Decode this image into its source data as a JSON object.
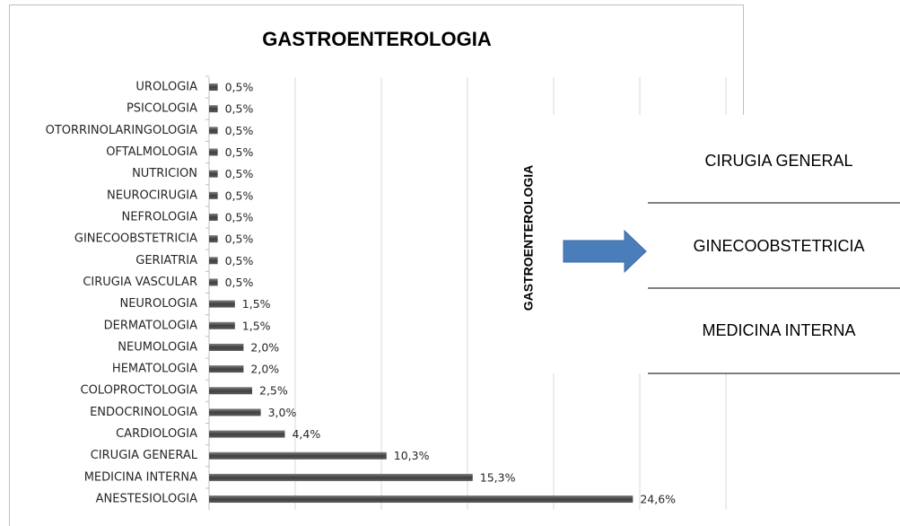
{
  "chart_data": {
    "type": "barh",
    "title": "GASTROENTEROLOGIA",
    "categories": [
      "UROLOGIA",
      "PSICOLOGIA",
      "OTORRINOLARINGOLOGIA",
      "OFTALMOLOGIA",
      "NUTRICION",
      "NEUROCIRUGIA",
      "NEFROLOGIA",
      "GINECOOBSTETRICIA",
      "GERIATRIA",
      "CIRUGIA VASCULAR",
      "NEUROLOGIA",
      "DERMATOLOGIA",
      "NEUMOLOGIA",
      "HEMATOLOGIA",
      "COLOPROCTOLOGIA",
      "ENDOCRINOLOGIA",
      "CARDIOLOGIA",
      "CIRUGIA GENERAL",
      "MEDICINA INTERNA",
      "ANESTESIOLOGIA"
    ],
    "values": [
      0.5,
      0.5,
      0.5,
      0.5,
      0.5,
      0.5,
      0.5,
      0.5,
      0.5,
      0.5,
      1.5,
      1.5,
      2.0,
      2.0,
      2.5,
      3.0,
      4.4,
      10.3,
      15.3,
      24.6
    ],
    "value_labels": [
      "0,5%",
      "0,5%",
      "0,5%",
      "0,5%",
      "0,5%",
      "0,5%",
      "0,5%",
      "0,5%",
      "0,5%",
      "0,5%",
      "1,5%",
      "1,5%",
      "2,0%",
      "2,0%",
      "2,5%",
      "3,0%",
      "4,4%",
      "10,3%",
      "15,3%",
      "24,6%"
    ],
    "color": "#595959",
    "xlim": [
      0,
      30
    ],
    "xticks": [
      0,
      5,
      10,
      15,
      20,
      25,
      30
    ],
    "grid": true
  },
  "overlay": {
    "label": "GASTROENTEROLOGIA",
    "items": [
      "CIRUGIA GENERAL",
      "GINECOOBSTETRICIA",
      "MEDICINA INTERNA"
    ]
  }
}
